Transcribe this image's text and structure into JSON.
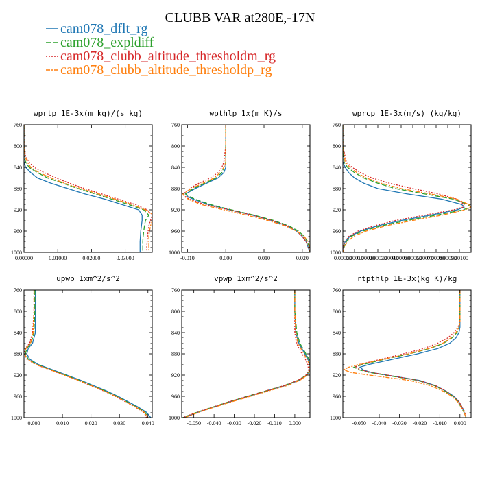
{
  "figure": {
    "title": "CLUBB VAR at280E,-17N"
  },
  "legend": [
    {
      "name": "cam078_dflt_rg",
      "color": "#1f77b4",
      "dash": "solid"
    },
    {
      "name": "cam078_expldiff",
      "color": "#2ca02c",
      "dash": "longdash"
    },
    {
      "name": "cam078_clubb_altitude_thresholdm_rg",
      "color": "#d62728",
      "dash": "dot"
    },
    {
      "name": "cam078_clubb_altitude_thresholdp_rg",
      "color": "#ff7f0e",
      "dash": "dashdot"
    }
  ],
  "chart_data": [
    {
      "type": "line",
      "title": "wprtp  1E-3x(m kg)/(s kg)",
      "xlim": [
        0,
        0.038
      ],
      "ylim": [
        760,
        1000
      ],
      "y_inverted": true,
      "xticks": [
        0,
        0.01,
        0.02,
        0.03
      ],
      "xtick_labels": [
        "0.00000",
        "0.01000",
        "0.02000",
        "0.03000"
      ],
      "yticks": [
        760,
        800,
        840,
        880,
        920,
        960,
        1000
      ],
      "y": [
        760,
        800,
        820,
        830,
        840,
        850,
        860,
        870,
        880,
        890,
        900,
        910,
        920,
        930,
        940,
        950,
        960,
        970,
        980,
        990,
        1000
      ],
      "series": [
        {
          "name": "cam078_dflt_rg",
          "values": [
            0,
            0,
            0,
            0,
            0.0005,
            0.002,
            0.004,
            0.008,
            0.013,
            0.018,
            0.024,
            0.029,
            0.034,
            0.035,
            0.035,
            0.0348,
            0.0346,
            0.0345,
            0.0344,
            0.0344,
            0.0344
          ]
        },
        {
          "name": "cam078_expldiff",
          "values": [
            0,
            0,
            0,
            0.0005,
            0.0015,
            0.004,
            0.007,
            0.0115,
            0.016,
            0.021,
            0.026,
            0.031,
            0.0355,
            0.037,
            0.036,
            0.0357,
            0.0355,
            0.0353,
            0.0352,
            0.0352,
            0.0352
          ]
        },
        {
          "name": "cam078_clubb_altitude_thresholdm_rg",
          "values": [
            0,
            0,
            0.0005,
            0.0015,
            0.003,
            0.006,
            0.0095,
            0.0135,
            0.018,
            0.023,
            0.028,
            0.033,
            0.0365,
            0.038,
            0.0375,
            0.037,
            0.0368,
            0.0366,
            0.0365,
            0.0364,
            0.0364
          ]
        },
        {
          "name": "cam078_clubb_altitude_thresholdp_rg",
          "values": [
            0,
            0,
            0.0003,
            0.001,
            0.002,
            0.0045,
            0.008,
            0.012,
            0.017,
            0.022,
            0.027,
            0.032,
            0.036,
            0.0385,
            0.038,
            0.0375,
            0.0372,
            0.037,
            0.037,
            0.037,
            0.037
          ]
        }
      ]
    },
    {
      "type": "line",
      "title": "wpthlp  1x(m K)/s",
      "xlim": [
        -0.0115,
        0.022
      ],
      "ylim": [
        760,
        1000
      ],
      "y_inverted": true,
      "xticks": [
        -0.01,
        0,
        0.01,
        0.02
      ],
      "xtick_labels": [
        "-0.010",
        "0.000",
        "0.010",
        "0.020"
      ],
      "yticks": [
        760,
        800,
        840,
        880,
        920,
        960,
        1000
      ],
      "y": [
        760,
        800,
        830,
        840,
        850,
        860,
        870,
        880,
        890,
        895,
        900,
        910,
        920,
        930,
        940,
        950,
        960,
        970,
        980,
        990,
        1000
      ],
      "series": [
        {
          "name": "cam078_dflt_rg",
          "values": [
            0,
            0,
            0,
            0,
            -0.0005,
            -0.002,
            -0.005,
            -0.008,
            -0.0105,
            -0.01,
            -0.0085,
            -0.0045,
            0.001,
            0.007,
            0.012,
            0.016,
            0.0185,
            0.02,
            0.021,
            0.0215,
            0.022
          ]
        },
        {
          "name": "cam078_expldiff",
          "values": [
            0,
            0,
            0,
            -0.0005,
            -0.001,
            -0.0025,
            -0.0055,
            -0.0085,
            -0.0105,
            -0.0095,
            -0.008,
            -0.004,
            0.0015,
            0.0075,
            0.0125,
            0.0165,
            0.019,
            0.0205,
            0.0213,
            0.0218,
            0.022
          ]
        },
        {
          "name": "cam078_clubb_altitude_thresholdm_rg",
          "values": [
            0,
            0,
            -0.0005,
            -0.001,
            -0.002,
            -0.004,
            -0.007,
            -0.0095,
            -0.011,
            -0.0105,
            -0.0095,
            -0.0055,
            0.001,
            0.007,
            0.012,
            0.016,
            0.0185,
            0.02,
            0.021,
            0.0215,
            0.022
          ]
        },
        {
          "name": "cam078_clubb_altitude_thresholdp_rg",
          "values": [
            0,
            0,
            0,
            -0.0005,
            -0.0015,
            -0.003,
            -0.006,
            -0.009,
            -0.0112,
            -0.0108,
            -0.0098,
            -0.0065,
            -0.0005,
            0.0055,
            0.011,
            0.0155,
            0.0185,
            0.0205,
            0.0215,
            0.022,
            0.022
          ]
        }
      ]
    },
    {
      "type": "line",
      "title": "wprcp  1E-3x(m/s) (kg/kg)",
      "xlim": [
        0,
        0.0011
      ],
      "ylim": [
        760,
        1000
      ],
      "y_inverted": true,
      "xticks": [
        0,
        0.0001,
        0.0002,
        0.0003,
        0.0004,
        0.0005,
        0.0006,
        0.0007,
        0.0008,
        0.0009,
        0.001
      ],
      "xtick_labels": [
        "0.00000",
        "0.00010",
        "0.00020",
        "0.00030",
        "0.00040",
        "0.00050",
        "0.00060",
        "0.00070",
        "0.00080",
        "0.00090",
        "0.00100"
      ],
      "yticks": [
        760,
        800,
        840,
        880,
        920,
        960,
        1000
      ],
      "y": [
        760,
        800,
        830,
        840,
        850,
        860,
        870,
        880,
        890,
        900,
        910,
        915,
        920,
        930,
        940,
        950,
        960,
        970,
        980,
        990,
        1000
      ],
      "series": [
        {
          "name": "cam078_dflt_rg",
          "values": [
            0,
            0,
            0,
            2e-05,
            5e-05,
            0.0001,
            0.00018,
            0.0003,
            0.00055,
            0.00085,
            0.00102,
            0.00104,
            0.00098,
            0.00075,
            0.0005,
            0.0003,
            0.00015,
            6e-05,
            2e-05,
            0,
            0
          ]
        },
        {
          "name": "cam078_expldiff",
          "values": [
            0,
            0,
            1e-05,
            4e-05,
            0.0001,
            0.00018,
            0.0003,
            0.00045,
            0.0007,
            0.00095,
            0.00107,
            0.0011,
            0.00103,
            0.0008,
            0.00055,
            0.00033,
            0.00017,
            7e-05,
            3e-05,
            1e-05,
            0
          ]
        },
        {
          "name": "cam078_clubb_altitude_thresholdm_rg",
          "values": [
            0,
            0,
            3e-05,
            8e-05,
            0.00015,
            0.00025,
            0.0004,
            0.0006,
            0.00082,
            0.00098,
            0.00104,
            0.00103,
            0.00095,
            0.0007,
            0.00045,
            0.00027,
            0.00013,
            5e-05,
            2e-05,
            0,
            0
          ]
        },
        {
          "name": "cam078_clubb_altitude_thresholdp_rg",
          "values": [
            0,
            0,
            2e-05,
            6e-05,
            0.00012,
            0.0002,
            0.00033,
            0.0005,
            0.00075,
            0.00098,
            0.00108,
            0.0011,
            0.00105,
            0.00085,
            0.0006,
            0.00037,
            0.0002,
            9e-05,
            4e-05,
            1e-05,
            0
          ]
        }
      ]
    },
    {
      "type": "line",
      "title": "upwp  1xm^2/s^2",
      "xlim": [
        -0.0035,
        0.0415
      ],
      "ylim": [
        760,
        1000
      ],
      "y_inverted": true,
      "xticks": [
        0,
        0.01,
        0.02,
        0.03,
        0.04
      ],
      "xtick_labels": [
        "0.000",
        "0.010",
        "0.020",
        "0.030",
        "0.040"
      ],
      "yticks": [
        760,
        800,
        840,
        880,
        920,
        960,
        1000
      ],
      "y": [
        760,
        800,
        840,
        860,
        870,
        880,
        890,
        900,
        910,
        920,
        930,
        940,
        950,
        960,
        970,
        980,
        990,
        1000
      ],
      "series": [
        {
          "name": "cam078_dflt_rg",
          "values": [
            0.0005,
            0.0005,
            0.0005,
            -0.0005,
            -0.002,
            -0.0025,
            -0.0015,
            0.0015,
            0.0065,
            0.0115,
            0.0165,
            0.021,
            0.0255,
            0.0295,
            0.033,
            0.0365,
            0.0395,
            0.041
          ]
        },
        {
          "name": "cam078_expldiff",
          "values": [
            0.0003,
            0.0003,
            0,
            -0.001,
            -0.0025,
            -0.003,
            -0.002,
            0.001,
            0.006,
            0.011,
            0.016,
            0.0205,
            0.025,
            0.029,
            0.0325,
            0.036,
            0.039,
            0.04
          ]
        },
        {
          "name": "cam078_clubb_altitude_thresholdm_rg",
          "values": [
            0,
            0,
            -0.0005,
            -0.0015,
            -0.003,
            -0.0035,
            -0.0025,
            0.0005,
            0.0055,
            0.0105,
            0.0155,
            0.02,
            0.0245,
            0.0285,
            0.032,
            0.0355,
            0.0385,
            0.0395
          ]
        },
        {
          "name": "cam078_clubb_altitude_thresholdp_rg",
          "values": [
            0,
            0,
            -0.0003,
            -0.0012,
            -0.0028,
            -0.0033,
            -0.0023,
            0.0007,
            0.0057,
            0.0107,
            0.0157,
            0.0202,
            0.0247,
            0.0287,
            0.0322,
            0.0357,
            0.0387,
            0.04
          ]
        }
      ]
    },
    {
      "type": "line",
      "title": "vpwp  1xm^2/s^2",
      "xlim": [
        -0.056,
        0.0075
      ],
      "ylim": [
        760,
        1000
      ],
      "y_inverted": true,
      "xticks": [
        -0.05,
        -0.04,
        -0.03,
        -0.02,
        -0.01,
        0
      ],
      "xtick_labels": [
        "-0.050",
        "-0.040",
        "-0.030",
        "-0.020",
        "-0.010",
        "0.000"
      ],
      "yticks": [
        760,
        800,
        840,
        880,
        920,
        960,
        1000
      ],
      "y": [
        760,
        800,
        840,
        860,
        880,
        890,
        900,
        910,
        920,
        930,
        940,
        950,
        960,
        970,
        980,
        990,
        1000
      ],
      "series": [
        {
          "name": "cam078_dflt_rg",
          "values": [
            0,
            0,
            0.0005,
            0.002,
            0.005,
            0.0065,
            0.0075,
            0.0075,
            0.006,
            0.002,
            -0.005,
            -0.014,
            -0.023,
            -0.032,
            -0.04,
            -0.048,
            -0.055
          ]
        },
        {
          "name": "cam078_expldiff",
          "values": [
            0,
            0,
            0.001,
            0.0025,
            0.0055,
            0.007,
            0.0078,
            0.0076,
            0.0058,
            0.0015,
            -0.0055,
            -0.0145,
            -0.0235,
            -0.0325,
            -0.0405,
            -0.0485,
            -0.0555
          ]
        },
        {
          "name": "cam078_clubb_altitude_thresholdm_rg",
          "values": [
            0,
            0,
            0,
            0.0008,
            0.0035,
            0.0052,
            0.0064,
            0.0068,
            0.0055,
            0.0015,
            -0.0055,
            -0.0145,
            -0.0235,
            -0.0325,
            -0.0405,
            -0.0485,
            -0.0555
          ]
        },
        {
          "name": "cam078_clubb_altitude_thresholdp_rg",
          "values": [
            0,
            0,
            0.0005,
            0.0015,
            0.0045,
            0.006,
            0.0072,
            0.0075,
            0.0062,
            0.0025,
            -0.004,
            -0.013,
            -0.022,
            -0.031,
            -0.0395,
            -0.0475,
            -0.0545
          ]
        }
      ]
    },
    {
      "type": "line",
      "title": "rtpthlp  1E-3x(kg K)/kg",
      "xlim": [
        -0.058,
        0.0055
      ],
      "ylim": [
        760,
        1000
      ],
      "y_inverted": true,
      "xticks": [
        -0.05,
        -0.04,
        -0.03,
        -0.02,
        -0.01,
        0
      ],
      "xtick_labels": [
        "-0.050",
        "-0.040",
        "-0.030",
        "-0.020",
        "-0.010",
        "0.000"
      ],
      "yticks": [
        760,
        800,
        840,
        880,
        920,
        960,
        1000
      ],
      "y": [
        760,
        800,
        820,
        830,
        840,
        850,
        860,
        870,
        880,
        890,
        900,
        905,
        910,
        915,
        920,
        930,
        940,
        950,
        960,
        970,
        980,
        990,
        1000
      ],
      "series": [
        {
          "name": "cam078_dflt_rg",
          "values": [
            0,
            0,
            0,
            0,
            -0.0005,
            -0.002,
            -0.005,
            -0.011,
            -0.021,
            -0.033,
            -0.045,
            -0.0495,
            -0.048,
            -0.044,
            -0.036,
            -0.02,
            -0.012,
            -0.007,
            -0.003,
            -0.0005,
            0.001,
            0.002,
            0.003
          ]
        },
        {
          "name": "cam078_expldiff",
          "values": [
            0,
            0,
            0,
            -0.0005,
            -0.0015,
            -0.004,
            -0.008,
            -0.015,
            -0.025,
            -0.037,
            -0.048,
            -0.0525,
            -0.05,
            -0.045,
            -0.037,
            -0.021,
            -0.0125,
            -0.0075,
            -0.0035,
            -0.001,
            0.0005,
            0.002,
            0.003
          ]
        },
        {
          "name": "cam078_clubb_altitude_thresholdm_rg",
          "values": [
            0,
            0,
            0,
            -0.001,
            -0.003,
            -0.006,
            -0.011,
            -0.018,
            -0.028,
            -0.039,
            -0.0495,
            -0.052,
            -0.049,
            -0.044,
            -0.036,
            -0.0205,
            -0.012,
            -0.007,
            -0.003,
            -0.0005,
            0.001,
            0.0025,
            0.003
          ]
        },
        {
          "name": "cam078_clubb_altitude_thresholdp_rg",
          "values": [
            0,
            0,
            0,
            -0.0005,
            -0.002,
            -0.0045,
            -0.0085,
            -0.0155,
            -0.0255,
            -0.0375,
            -0.05,
            -0.055,
            -0.0575,
            -0.054,
            -0.045,
            -0.025,
            -0.0145,
            -0.0085,
            -0.004,
            -0.0012,
            0.0005,
            0.002,
            0.003
          ]
        }
      ]
    }
  ]
}
